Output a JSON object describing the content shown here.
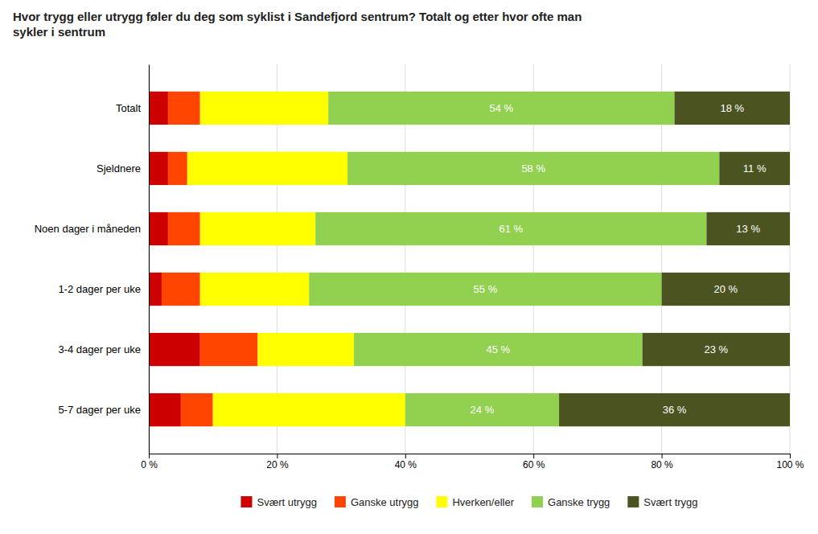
{
  "chart_data": {
    "type": "bar",
    "orientation": "horizontal",
    "stacked": true,
    "title": "Hvor trygg eller utrygg føler du deg som syklist i Sandefjord sentrum? Totalt og etter hvor ofte man\nsykler i sentrum",
    "categories": [
      "Totalt",
      "Sjeldnere",
      "Noen dager i måneden",
      "1-2 dager per uke",
      "3-4 dager per uke",
      "5-7 dager per uke"
    ],
    "series": [
      {
        "name": "Svært utrygg",
        "color": "#CC0000",
        "values": [
          3,
          3,
          3,
          2,
          8,
          5
        ]
      },
      {
        "name": "Ganske utrygg",
        "color": "#FF4500",
        "values": [
          5,
          3,
          5,
          6,
          9,
          5
        ]
      },
      {
        "name": "Hverken/eller",
        "color": "#FFFF00",
        "values": [
          20,
          25,
          18,
          17,
          15,
          30
        ]
      },
      {
        "name": "Ganske trygg",
        "color": "#92D050",
        "values": [
          54,
          58,
          61,
          55,
          45,
          24
        ],
        "data_labels": true,
        "value_labels": [
          "54 %",
          "58 %",
          "61 %",
          "55 %",
          "45 %",
          "24 %"
        ]
      },
      {
        "name": "Svært trygg",
        "color": "#4B5320",
        "values": [
          18,
          11,
          13,
          20,
          23,
          36
        ],
        "data_labels": true,
        "value_labels": [
          "18 %",
          "11 %",
          "13 %",
          "20 %",
          "23 %",
          "36 %"
        ]
      }
    ],
    "xlim": [
      0,
      100
    ],
    "xticks": [
      {
        "value": 0,
        "label": "0 %"
      },
      {
        "value": 20,
        "label": "20 %"
      },
      {
        "value": 40,
        "label": "40 %"
      },
      {
        "value": 60,
        "label": "60 %"
      },
      {
        "value": 80,
        "label": "80 %"
      },
      {
        "value": 100,
        "label": "100 %"
      }
    ],
    "grid": true,
    "legend": "bottom"
  }
}
